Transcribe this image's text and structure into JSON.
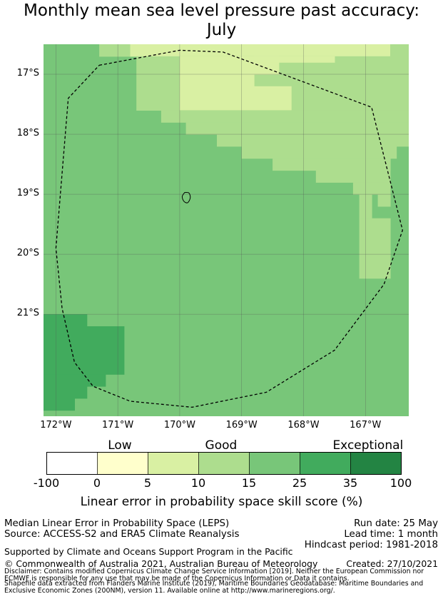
{
  "title_line1": "Monthly mean sea level pressure past accuracy:",
  "title_line2": "July",
  "map": {
    "lon_range": [
      -172.2,
      -166.3
    ],
    "lat_range": [
      -22.7,
      -16.5
    ],
    "lat_ticks": [
      {
        "value": -17,
        "label": "17°S"
      },
      {
        "value": -18,
        "label": "18°S"
      },
      {
        "value": -19,
        "label": "19°S"
      },
      {
        "value": -20,
        "label": "20°S"
      },
      {
        "value": -21,
        "label": "21°S"
      }
    ],
    "lon_ticks": [
      {
        "value": -172,
        "label": "172°W"
      },
      {
        "value": -171,
        "label": "171°W"
      },
      {
        "value": -170,
        "label": "170°W"
      },
      {
        "value": -169,
        "label": "169°W"
      },
      {
        "value": -168,
        "label": "168°W"
      },
      {
        "value": -167,
        "label": "167°W"
      }
    ],
    "grid": true,
    "base_category": "15-25",
    "regions": [
      {
        "category": "10-15",
        "lon": [
          -171.3,
          -170.8
        ],
        "lat": [
          -16.7,
          -16.5
        ]
      },
      {
        "category": "5-10",
        "lon": [
          -170.8,
          -166.6
        ],
        "lat": [
          -16.7,
          -16.5
        ]
      },
      {
        "category": "10-15",
        "lon": [
          -166.6,
          -166.3
        ],
        "lat": [
          -16.7,
          -16.5
        ]
      },
      {
        "category": "10-15",
        "lon": [
          -170.7,
          -166.3
        ],
        "lat": [
          -17.6,
          -16.7
        ]
      },
      {
        "category": "5-10",
        "lon": [
          -170.0,
          -168.8
        ],
        "lat": [
          -17.2,
          -16.7
        ]
      },
      {
        "category": "5-10",
        "lon": [
          -168.8,
          -168.4
        ],
        "lat": [
          -17.0,
          -16.7
        ]
      },
      {
        "category": "5-10",
        "lon": [
          -168.8,
          -167.5
        ],
        "lat": [
          -16.8,
          -16.7
        ]
      },
      {
        "category": "5-10",
        "lon": [
          -170.0,
          -168.2
        ],
        "lat": [
          -17.6,
          -17.2
        ]
      },
      {
        "category": "5-10",
        "lon": [
          -169.2,
          -169.0
        ],
        "lat": [
          -17.8,
          -17.6
        ]
      },
      {
        "category": "10-15",
        "lon": [
          -170.3,
          -166.3
        ],
        "lat": [
          -17.8,
          -17.6
        ]
      },
      {
        "category": "10-15",
        "lon": [
          -169.9,
          -166.3
        ],
        "lat": [
          -18.0,
          -17.8
        ]
      },
      {
        "category": "10-15",
        "lon": [
          -169.4,
          -166.3
        ],
        "lat": [
          -18.2,
          -18.0
        ]
      },
      {
        "category": "10-15",
        "lon": [
          -169.0,
          -166.5
        ],
        "lat": [
          -18.4,
          -18.2
        ]
      },
      {
        "category": "10-15",
        "lon": [
          -168.5,
          -166.6
        ],
        "lat": [
          -18.6,
          -18.4
        ]
      },
      {
        "category": "10-15",
        "lon": [
          -167.8,
          -166.6
        ],
        "lat": [
          -18.8,
          -18.6
        ]
      },
      {
        "category": "10-15",
        "lon": [
          -167.2,
          -166.6
        ],
        "lat": [
          -19.0,
          -18.8
        ]
      },
      {
        "category": "10-15",
        "lon": [
          -166.8,
          -166.6
        ],
        "lat": [
          -19.2,
          -19.0
        ]
      },
      {
        "category": "10-15",
        "lon": [
          -167.1,
          -166.6
        ],
        "lat": [
          -20.4,
          -19.4
        ]
      },
      {
        "category": "10-15",
        "lon": [
          -167.1,
          -166.9
        ],
        "lat": [
          -19.4,
          -19.0
        ]
      },
      {
        "category": "25-35",
        "lon": [
          -172.2,
          -171.5
        ],
        "lat": [
          -21.2,
          -21.0
        ]
      },
      {
        "category": "25-35",
        "lon": [
          -172.2,
          -170.9
        ],
        "lat": [
          -22.0,
          -21.2
        ]
      },
      {
        "category": "25-35",
        "lon": [
          -172.2,
          -171.2
        ],
        "lat": [
          -22.2,
          -22.0
        ]
      },
      {
        "category": "25-35",
        "lon": [
          -172.2,
          -171.5
        ],
        "lat": [
          -22.4,
          -22.2
        ]
      },
      {
        "category": "25-35",
        "lon": [
          -172.2,
          -171.7
        ],
        "lat": [
          -22.6,
          -22.4
        ]
      }
    ],
    "boundary": [
      [
        -171.3,
        -16.85
      ],
      [
        -170.0,
        -16.6
      ],
      [
        -169.3,
        -16.63
      ],
      [
        -166.9,
        -17.55
      ],
      [
        -166.4,
        -19.6
      ],
      [
        -166.7,
        -20.5
      ],
      [
        -167.5,
        -21.6
      ],
      [
        -168.6,
        -22.3
      ],
      [
        -169.8,
        -22.55
      ],
      [
        -170.8,
        -22.45
      ],
      [
        -171.4,
        -22.2
      ],
      [
        -171.7,
        -21.8
      ],
      [
        -171.9,
        -20.9
      ],
      [
        -172.0,
        -19.9
      ],
      [
        -171.8,
        -17.4
      ],
      [
        -171.3,
        -16.85
      ]
    ],
    "island": [
      [
        -169.92,
        -18.97
      ],
      [
        -169.85,
        -18.98
      ],
      [
        -169.83,
        -19.06
      ],
      [
        -169.87,
        -19.14
      ],
      [
        -169.93,
        -19.12
      ],
      [
        -169.96,
        -19.04
      ],
      [
        -169.92,
        -18.97
      ]
    ]
  },
  "colors": {
    "-100-0": "#ffffff",
    "0-5": "#ffffcc",
    "5-10": "#d9f0a3",
    "10-15": "#addd8e",
    "15-25": "#78c679",
    "25-35": "#41ab5d",
    "35-100": "#238443"
  },
  "colorbar": {
    "bins": [
      "-100-0",
      "0-5",
      "5-10",
      "10-15",
      "15-25",
      "25-35",
      "35-100"
    ],
    "ticks": [
      "-100",
      "0",
      "5",
      "10",
      "15",
      "25",
      "35",
      "100"
    ],
    "categories": [
      {
        "label": "Low",
        "bin_index": 1.45
      },
      {
        "label": "Good",
        "bin_index": 3.45
      },
      {
        "label": "Exceptional",
        "bin_index": 6.35
      }
    ],
    "title": "Linear error in probability space skill score (%)"
  },
  "footer": {
    "method": "Median Linear Error in Probability Space (LEPS)",
    "source": "Source: ACCESS-S2 and ERA5 Climate Reanalysis",
    "run_date": "Run date: 25 May",
    "lead_time": "Lead time: 1 month",
    "hindcast": "Hindcast period: 1981-2018",
    "support": "Supported by Climate and Oceans Support Program in the Pacific",
    "copyright": "© Commonwealth of Australia 2021, Australian Bureau of Meteorology",
    "created": "Created: 27/10/2021",
    "disclaimer1": "Disclaimer: Contains modified Copernicus Climate Change Service Information [2019]. Neither the European Commission nor",
    "disclaimer2": "ECMWF is responsible for any use that may be made of the Copernicus Information or Data it contains.",
    "shapefile1": "Shapefile data extracted from Flanders Marine Institute (2019), Maritime Boundaries Geodatabase: Maritime Boundaries and",
    "shapefile2": "Exclusive Economic Zones (200NM), version 11. Available online at http://www.marineregions.org/."
  }
}
